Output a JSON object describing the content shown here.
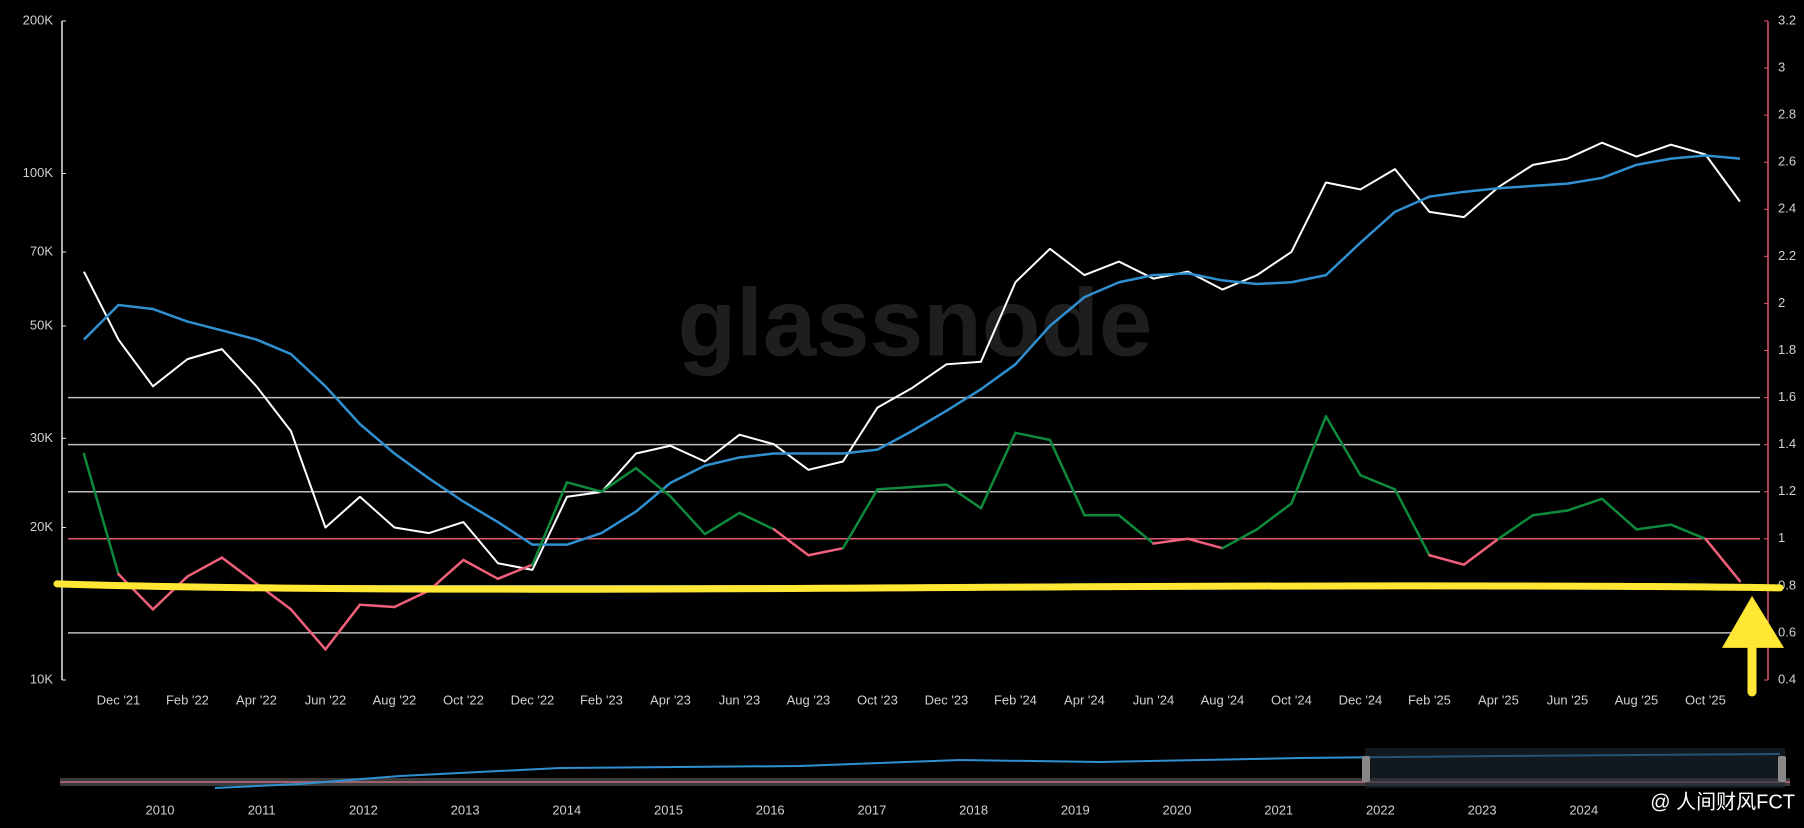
{
  "chart_data": {
    "type": "line",
    "watermark": "glassnode",
    "credit": "@ 人间财风FCT",
    "x": [
      null,
      "Dec '21",
      null,
      "Feb '22",
      null,
      "Apr '22",
      null,
      "Jun '22",
      null,
      "Aug '22",
      null,
      "Oct '22",
      null,
      "Dec '22",
      null,
      "Feb '23",
      null,
      "Apr '23",
      null,
      "Jun '23",
      null,
      "Aug '23",
      null,
      "Oct '23",
      null,
      "Dec '23",
      null,
      "Feb '24",
      null,
      "Apr '24",
      null,
      "Jun '24",
      null,
      "Aug '24",
      null,
      "Oct '24",
      null,
      "Dec '24",
      null,
      "Feb '25",
      null,
      "Apr '25",
      null,
      "Jun '25",
      null,
      "Aug '25",
      null,
      "Oct '25",
      null
    ],
    "log_scale": true,
    "ylim": [
      10000,
      200000
    ],
    "yticks": [
      {
        "value": 10000,
        "label": "10K"
      },
      {
        "value": 20000,
        "label": "20K"
      },
      {
        "value": 30000,
        "label": "30K"
      },
      {
        "value": 50000,
        "label": "50K"
      },
      {
        "value": 70000,
        "label": "70K"
      },
      {
        "value": 100000,
        "label": "100K"
      },
      {
        "value": 200000,
        "label": "200K"
      }
    ],
    "y2lim": [
      0.4,
      3.2
    ],
    "y2ticks": [
      0.4,
      0.6,
      0.8,
      1,
      1.2,
      1.4,
      1.6,
      1.8,
      2,
      2.2,
      2.4,
      2.6,
      2.8,
      3,
      3.2
    ],
    "reference_lines": [
      0.6,
      0.8,
      1.2,
      1.4,
      1.6
    ],
    "reference_color": "#bdbdbd",
    "threshold": 1,
    "threshold_color": "#e0566e",
    "highlight_level": 0.8,
    "highlight_color": "#ffe733",
    "series": [
      {
        "color": "#ffffff",
        "values": [
          64000,
          47000,
          38000,
          43000,
          45000,
          38000,
          31000,
          20000,
          23000,
          20000,
          19500,
          20500,
          17000,
          16500,
          23000,
          23500,
          28000,
          29000,
          27000,
          30500,
          29200,
          26000,
          27000,
          34500,
          37700,
          42000,
          42500,
          61000,
          71000,
          63000,
          67000,
          62000,
          64000,
          59000,
          63000,
          70000,
          96000,
          93000,
          102000,
          84000,
          82000,
          94000,
          104000,
          107000,
          115000,
          108000,
          114000,
          109000,
          88000
        ]
      },
      {
        "color": "#2f8fcf",
        "values": [
          47000,
          55000,
          54000,
          51000,
          49000,
          47000,
          44000,
          38000,
          32000,
          28000,
          25000,
          22500,
          20500,
          18500,
          18500,
          19500,
          21500,
          24500,
          26500,
          27500,
          28000,
          28000,
          28000,
          28500,
          31000,
          34000,
          37500,
          42000,
          50000,
          57000,
          61000,
          63000,
          63500,
          61500,
          60500,
          61000,
          63000,
          73000,
          84000,
          90000,
          92000,
          93500,
          94500,
          95500,
          98000,
          104000,
          107000,
          108500,
          107000
        ]
      },
      {
        "color": "#0f8a3c",
        "color_below": "#f0607a",
        "axis": "y2",
        "values": [
          1.36,
          0.85,
          0.7,
          0.84,
          0.92,
          0.81,
          0.7,
          0.53,
          0.72,
          0.71,
          0.78,
          0.91,
          0.83,
          0.89,
          1.24,
          1.2,
          1.3,
          1.18,
          1.02,
          1.11,
          1.04,
          0.93,
          0.96,
          1.21,
          1.22,
          1.23,
          1.13,
          1.45,
          1.42,
          1.1,
          1.1,
          0.98,
          1,
          0.96,
          1.04,
          1.15,
          1.52,
          1.27,
          1.21,
          0.93,
          0.89,
          1,
          1.1,
          1.12,
          1.17,
          1.04,
          1.06,
          1,
          0.82
        ]
      }
    ],
    "navigator": {
      "labels": [
        "2010",
        "2011",
        "2012",
        "2013",
        "2014",
        "2015",
        "2016",
        "2017",
        "2018",
        "2019",
        "2020",
        "2021",
        "2022",
        "2023",
        "2024"
      ]
    }
  }
}
